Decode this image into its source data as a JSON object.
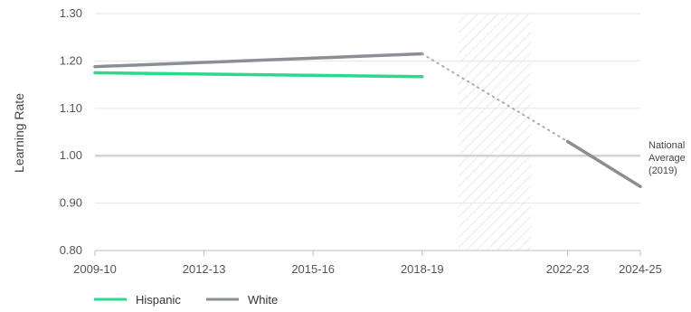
{
  "chart_data": {
    "type": "line",
    "ylabel": "Learning Rate",
    "ylim": [
      0.8,
      1.3
    ],
    "yticks": [
      "0.80",
      "0.90",
      "1.00",
      "1.10",
      "1.20",
      "1.30"
    ],
    "xlim": [
      2009,
      2024
    ],
    "xticks": [
      {
        "pos": 2009,
        "label": "2009-10"
      },
      {
        "pos": 2012,
        "label": "2012-13"
      },
      {
        "pos": 2015,
        "label": "2015-16"
      },
      {
        "pos": 2018,
        "label": "2018-19"
      },
      {
        "pos": 2022,
        "label": "2022-23"
      },
      {
        "pos": 2024,
        "label": "2024-25"
      }
    ],
    "shaded_gap": [
      2019,
      2021
    ],
    "reference_line": {
      "y": 1.0,
      "label": [
        "National",
        "Average",
        "(2019)"
      ]
    },
    "grid": "horizontal",
    "legend_position": "bottom-left",
    "series": [
      {
        "name": "Hispanic",
        "color": "#2bd98b",
        "points": [
          {
            "x": 2009,
            "y": 1.175
          },
          {
            "x": 2018,
            "y": 1.167
          }
        ]
      },
      {
        "name": "White",
        "color": "#8a8f96",
        "points": [
          {
            "x": 2009,
            "y": 1.188
          },
          {
            "x": 2018,
            "y": 1.215
          }
        ],
        "projection": [
          {
            "x": 2018,
            "y": 1.215
          },
          {
            "x": 2022,
            "y": 1.03
          }
        ],
        "continuation": [
          {
            "x": 2022,
            "y": 1.03
          },
          {
            "x": 2024,
            "y": 0.935
          }
        ]
      }
    ]
  }
}
